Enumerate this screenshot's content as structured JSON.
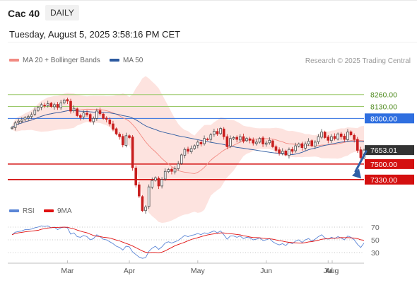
{
  "header": {
    "title": "Cac 40",
    "period": "DAILY",
    "timestamp": "Tuesday, August 5, 2025 3:58:16 PM CET"
  },
  "legend": {
    "ma": {
      "label": "MA 20 + Bollinger Bands",
      "color": "#f28a82"
    },
    "ma50": {
      "label": "MA 50",
      "color": "#2c5aa0"
    },
    "credit": "Research © 2025 Trading Central",
    "rsi": {
      "label": "RSI",
      "color": "#5b86d6"
    },
    "rsi_ma": {
      "label": "9MA",
      "color": "#e01010"
    }
  },
  "colors": {
    "up": "#4a4a4a",
    "down": "#c81e1e",
    "band_fill": "#fde3df",
    "resistance_green": "#9bc96a",
    "support_red": "#d41010",
    "resistance_blue": "#2f6fe0",
    "last_price_bg": "#333333",
    "arrow": "#2f5fa6"
  },
  "chart_data": [
    {
      "type": "candlestick",
      "title": "Cac 40",
      "y_range": [
        7050,
        8560
      ],
      "x_tick_labels": [
        "Mar",
        "Apr",
        "May",
        "Jun",
        "Jul",
        "Aug"
      ],
      "last_price": 7653.01,
      "levels": [
        {
          "value": 8260,
          "label": "8260.00",
          "kind": "resistance-green"
        },
        {
          "value": 8130,
          "label": "8130.00",
          "kind": "resistance-green"
        },
        {
          "value": 8000,
          "label": "8000.00",
          "kind": "resistance-blue"
        },
        {
          "value": 7500,
          "label": "7500.00",
          "kind": "support-red"
        },
        {
          "value": 7330,
          "label": "7330.00",
          "kind": "support-red"
        }
      ],
      "close": [
        7900,
        7950,
        7970,
        7980,
        8010,
        8020,
        8040,
        8090,
        8120,
        8150,
        8140,
        8160,
        8130,
        8150,
        8120,
        8170,
        8200,
        8190,
        8080,
        8110,
        8030,
        8010,
        8060,
        8040,
        7970,
        8000,
        8080,
        8050,
        8000,
        7990,
        7940,
        7880,
        7830,
        7800,
        7710,
        7810,
        7790,
        7460,
        7270,
        7150,
        6990,
        7030,
        7250,
        7320,
        7350,
        7260,
        7330,
        7420,
        7440,
        7420,
        7450,
        7500,
        7600,
        7660,
        7640,
        7670,
        7700,
        7740,
        7720,
        7780,
        7770,
        7820,
        7860,
        7830,
        7890,
        7800,
        7690,
        7780,
        7790,
        7770,
        7800,
        7750,
        7780,
        7760,
        7730,
        7740,
        7780,
        7720,
        7730,
        7760,
        7690,
        7650,
        7620,
        7640,
        7600,
        7660,
        7640,
        7700,
        7720,
        7680,
        7720,
        7750,
        7700,
        7740,
        7800,
        7850,
        7790,
        7760,
        7800,
        7780,
        7830,
        7800,
        7770,
        7850,
        7820,
        7770,
        7650,
        7570,
        7653
      ]
    },
    {
      "type": "line",
      "title": "RSI",
      "y_range": [
        20,
        80
      ],
      "y_ticks": [
        30,
        50,
        70
      ],
      "series": [
        {
          "name": "RSI",
          "values": [
            58,
            62,
            63,
            64,
            66,
            66,
            67,
            69,
            70,
            72,
            71,
            72,
            69,
            70,
            66,
            69,
            70,
            69,
            59,
            61,
            55,
            54,
            57,
            55,
            50,
            52,
            58,
            55,
            51,
            50,
            47,
            44,
            40,
            38,
            34,
            40,
            39,
            31,
            27,
            23,
            21,
            22,
            32,
            37,
            40,
            35,
            39,
            45,
            47,
            45,
            47,
            49,
            53,
            57,
            55,
            57,
            58,
            60,
            58,
            61,
            60,
            62,
            64,
            61,
            64,
            58,
            51,
            56,
            56,
            54,
            56,
            52,
            54,
            53,
            50,
            51,
            53,
            49,
            50,
            52,
            47,
            44,
            42,
            44,
            41,
            46,
            44,
            48,
            50,
            46,
            50,
            52,
            48,
            51,
            55,
            58,
            53,
            51,
            54,
            52,
            55,
            53,
            50,
            56,
            54,
            50,
            43,
            38,
            45
          ]
        },
        {
          "name": "9MA"
        }
      ]
    }
  ]
}
